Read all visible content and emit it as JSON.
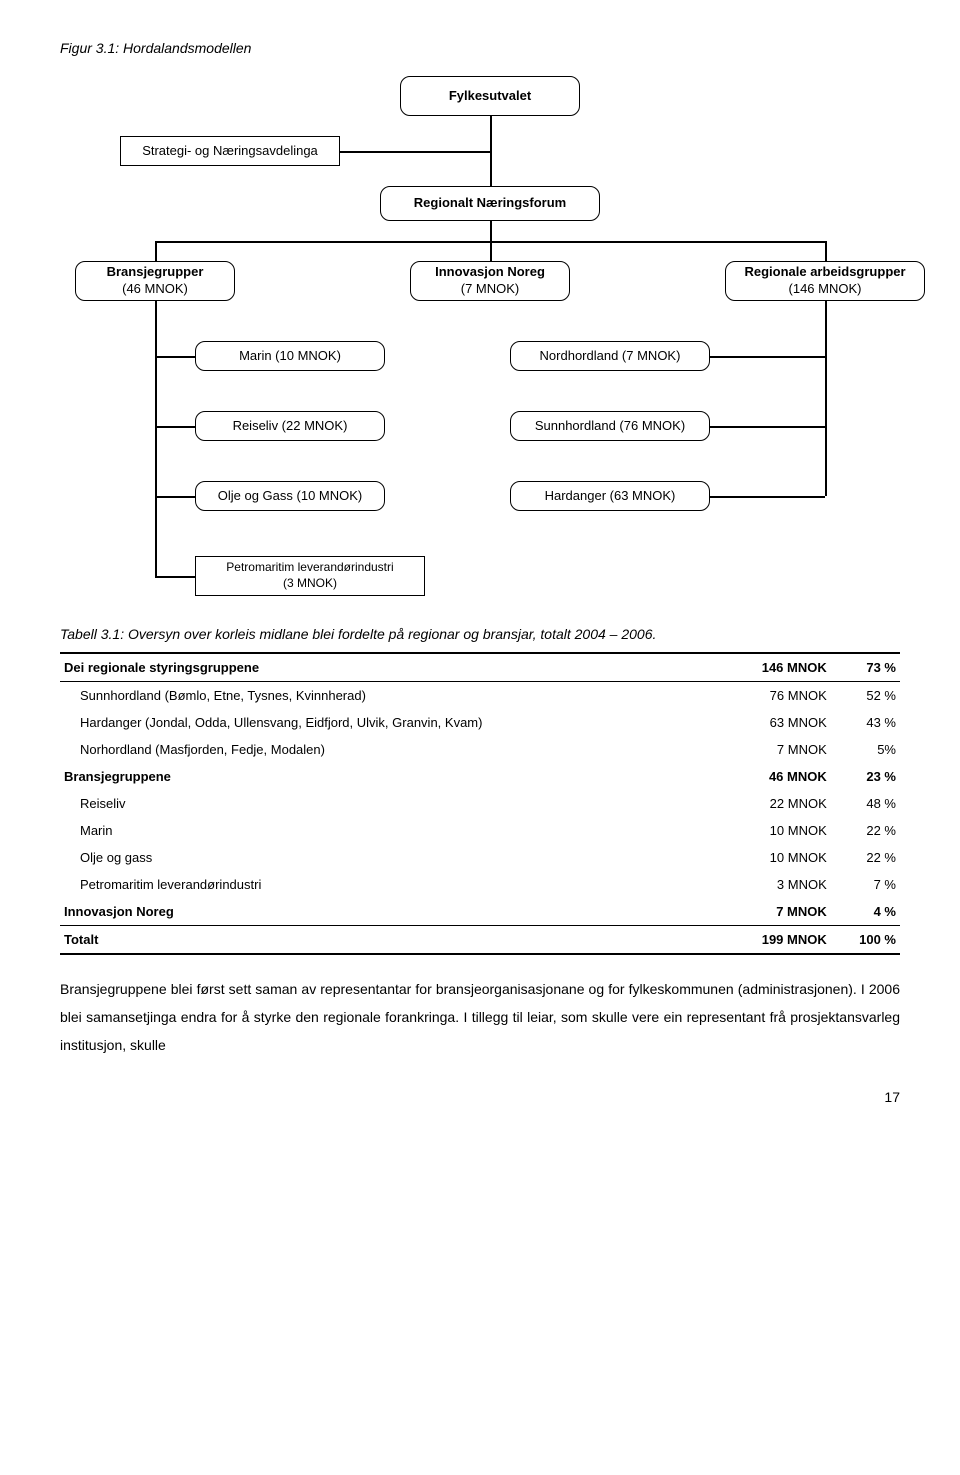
{
  "figure": {
    "caption": "Figur 3.1: Hordalandsmodellen",
    "nodes": {
      "top": "Fylkesutvalet",
      "strategi": "Strategi- og Næringsavdelinga",
      "regforum": "Regionalt Næringsforum",
      "bransje_l1": "Bransjegrupper",
      "bransje_l2": "(46 MNOK)",
      "innov_l1": "Innovasjon Noreg",
      "innov_l2": "(7 MNOK)",
      "regarb_l1": "Regionale arbeidsgrupper",
      "regarb_l2": "(146 MNOK)",
      "marin": "Marin (10 MNOK)",
      "nordh": "Nordhordland (7 MNOK)",
      "reiseliv": "Reiseliv (22 MNOK)",
      "sunnh": "Sunnhordland (76 MNOK)",
      "olje": "Olje og Gass (10 MNOK)",
      "hardanger": "Hardanger (63 MNOK)",
      "petro_l1": "Petromaritim leverandørindustri",
      "petro_l2": "(3 MNOK)"
    },
    "style": {
      "node_border_color": "#000000",
      "node_bg": "#ffffff",
      "rounded_radius": 10,
      "font_size": 13
    }
  },
  "table": {
    "caption": "Tabell 3.1: Oversyn over korleis midlane blei fordelte på regionar og bransjar, totalt 2004 – 2006.",
    "rows": [
      {
        "label": "Dei regionale styringsgruppene",
        "value": "146 MNOK",
        "pct": "73 %",
        "bold": true,
        "indent": false
      },
      {
        "label": "Sunnhordland (Bømlo, Etne, Tysnes, Kvinnherad)",
        "value": "76 MNOK",
        "pct": "52 %",
        "bold": false,
        "indent": true
      },
      {
        "label": "Hardanger (Jondal, Odda, Ullensvang, Eidfjord, Ulvik, Granvin, Kvam)",
        "value": "63 MNOK",
        "pct": "43 %",
        "bold": false,
        "indent": true
      },
      {
        "label": "Norhordland (Masfjorden, Fedje, Modalen)",
        "value": "7 MNOK",
        "pct": "5%",
        "bold": false,
        "indent": true
      },
      {
        "label": "Bransjegruppene",
        "value": "46 MNOK",
        "pct": "23 %",
        "bold": true,
        "indent": false
      },
      {
        "label": "Reiseliv",
        "value": "22 MNOK",
        "pct": "48 %",
        "bold": false,
        "indent": true
      },
      {
        "label": "Marin",
        "value": "10 MNOK",
        "pct": "22 %",
        "bold": false,
        "indent": true
      },
      {
        "label": "Olje og gass",
        "value": "10 MNOK",
        "pct": "22 %",
        "bold": false,
        "indent": true
      },
      {
        "label": "Petromaritim leverandørindustri",
        "value": "3 MNOK",
        "pct": "7 %",
        "bold": false,
        "indent": true
      },
      {
        "label": "Innovasjon Noreg",
        "value": "7 MNOK",
        "pct": "4 %",
        "bold": true,
        "indent": false
      },
      {
        "label": "Totalt",
        "value": "199  MNOK",
        "pct": "100 %",
        "bold": true,
        "indent": false
      }
    ]
  },
  "body": "Bransjegruppene blei først sett saman av representantar for bransjeorganisasjonane og for fylkeskommunen (administrasjonen). I 2006 blei samansetjinga endra for å styrke den regionale forankringa. I tillegg til leiar, som skulle vere ein representant frå prosjektansvarleg institusjon, skulle",
  "page": "17"
}
